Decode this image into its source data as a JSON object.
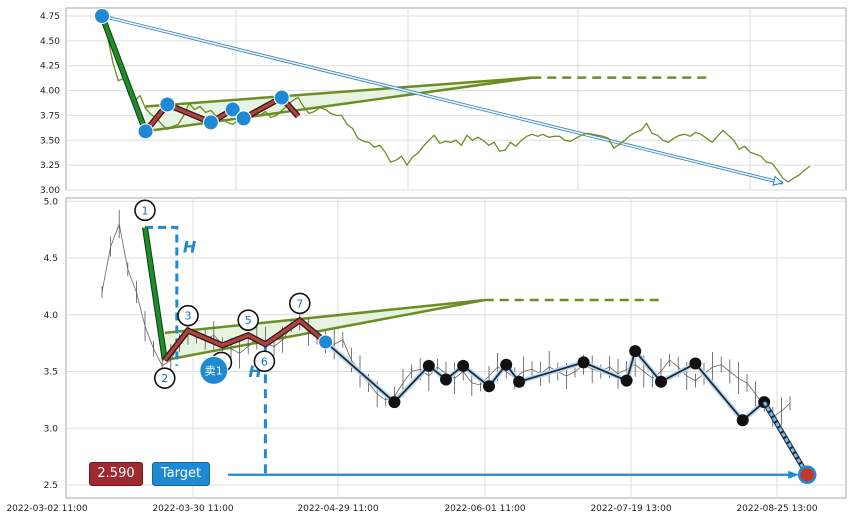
{
  "colors": {
    "price_line_top": "#6b8e23",
    "triangle": "#6b8e23",
    "impulse": "#1f8c2a",
    "zigzag_fill": "#a94442",
    "projection": "#1f8ad4",
    "markers_top": "#1f8ad4",
    "markers_bottom": "#111111",
    "target_marker": "#c0392b"
  },
  "badges": {
    "price": "2.590",
    "target": "Target"
  },
  "chart_data": [
    {
      "type": "line",
      "panel": "top",
      "y_ticks": [
        "4.75",
        "4.50",
        "4.25",
        "4.00",
        "3.75",
        "3.50",
        "3.25",
        "3.00"
      ],
      "ylim": [
        3.0,
        4.78
      ],
      "grid": true,
      "series": [
        {
          "values": [
            [
              0,
              4.75
            ],
            [
              1,
              4.55
            ],
            [
              2,
              4.28
            ],
            [
              3,
              4.1
            ],
            [
              4,
              4.12
            ],
            [
              5,
              3.95
            ],
            [
              6,
              3.9
            ],
            [
              7,
              3.95
            ],
            [
              8,
              3.82
            ],
            [
              9,
              3.76
            ],
            [
              10,
              3.72
            ],
            [
              11,
              3.66
            ],
            [
              12,
              3.61
            ],
            [
              13,
              3.64
            ],
            [
              14,
              3.66
            ],
            [
              15,
              3.75
            ],
            [
              16,
              3.87
            ],
            [
              17,
              3.81
            ],
            [
              18,
              3.84
            ],
            [
              19,
              3.78
            ],
            [
              20,
              3.8
            ],
            [
              21,
              3.74
            ],
            [
              22,
              3.72
            ],
            [
              23,
              3.68
            ],
            [
              24,
              3.66
            ],
            [
              25,
              3.7
            ],
            [
              26,
              3.74
            ],
            [
              27,
              3.72
            ],
            [
              28,
              3.77
            ],
            [
              29,
              3.75
            ],
            [
              30,
              3.79
            ],
            [
              31,
              3.73
            ],
            [
              32,
              3.75
            ],
            [
              33,
              3.8
            ],
            [
              34,
              3.85
            ],
            [
              35,
              3.9
            ],
            [
              36,
              3.93
            ],
            [
              37,
              3.84
            ],
            [
              38,
              3.77
            ],
            [
              39,
              3.79
            ],
            [
              40,
              3.83
            ],
            [
              41,
              3.81
            ],
            [
              42,
              3.77
            ],
            [
              43,
              3.75
            ],
            [
              44,
              3.75
            ],
            [
              45,
              3.66
            ],
            [
              46,
              3.62
            ],
            [
              47,
              3.52
            ],
            [
              48,
              3.49
            ],
            [
              49,
              3.48
            ],
            [
              50,
              3.43
            ],
            [
              51,
              3.45
            ],
            [
              52,
              3.38
            ],
            [
              53,
              3.28
            ],
            [
              54,
              3.3
            ],
            [
              55,
              3.34
            ],
            [
              56,
              3.25
            ],
            [
              57,
              3.33
            ],
            [
              58,
              3.37
            ],
            [
              59,
              3.44
            ],
            [
              60,
              3.5
            ],
            [
              61,
              3.55
            ],
            [
              62,
              3.47
            ],
            [
              63,
              3.49
            ],
            [
              64,
              3.48
            ],
            [
              65,
              3.5
            ],
            [
              66,
              3.45
            ],
            [
              67,
              3.55
            ],
            [
              68,
              3.5
            ],
            [
              69,
              3.53
            ],
            [
              70,
              3.5
            ],
            [
              71,
              3.45
            ],
            [
              72,
              3.48
            ],
            [
              73,
              3.39
            ],
            [
              74,
              3.4
            ],
            [
              75,
              3.48
            ],
            [
              76,
              3.44
            ],
            [
              77,
              3.5
            ],
            [
              78,
              3.54
            ],
            [
              79,
              3.56
            ],
            [
              80,
              3.54
            ],
            [
              81,
              3.56
            ],
            [
              82,
              3.53
            ],
            [
              83,
              3.54
            ],
            [
              84,
              3.54
            ],
            [
              85,
              3.5
            ],
            [
              86,
              3.49
            ],
            [
              87,
              3.52
            ],
            [
              88,
              3.55
            ],
            [
              89,
              3.57
            ],
            [
              90,
              3.56
            ],
            [
              91,
              3.55
            ],
            [
              92,
              3.54
            ],
            [
              93,
              3.52
            ],
            [
              94,
              3.42
            ],
            [
              95,
              3.46
            ],
            [
              96,
              3.5
            ],
            [
              97,
              3.55
            ],
            [
              98,
              3.58
            ],
            [
              99,
              3.6
            ],
            [
              100,
              3.67
            ],
            [
              101,
              3.57
            ],
            [
              102,
              3.55
            ],
            [
              103,
              3.5
            ],
            [
              104,
              3.48
            ],
            [
              105,
              3.52
            ],
            [
              106,
              3.55
            ],
            [
              107,
              3.56
            ],
            [
              108,
              3.54
            ],
            [
              109,
              3.58
            ],
            [
              110,
              3.56
            ],
            [
              111,
              3.52
            ],
            [
              112,
              3.48
            ],
            [
              113,
              3.54
            ],
            [
              114,
              3.6
            ],
            [
              115,
              3.55
            ],
            [
              116,
              3.5
            ],
            [
              117,
              3.41
            ],
            [
              118,
              3.44
            ],
            [
              119,
              3.38
            ],
            [
              120,
              3.36
            ],
            [
              121,
              3.34
            ],
            [
              122,
              3.28
            ],
            [
              123,
              3.27
            ],
            [
              124,
              3.2
            ],
            [
              125,
              3.12
            ],
            [
              126,
              3.08
            ],
            [
              127,
              3.12
            ],
            [
              128,
              3.15
            ],
            [
              129,
              3.2
            ],
            [
              130,
              3.24
            ]
          ]
        }
      ],
      "markers": [
        [
          0,
          4.75
        ],
        [
          8,
          3.59
        ],
        [
          12,
          3.86
        ],
        [
          20,
          3.68
        ],
        [
          24,
          3.81
        ],
        [
          26,
          3.72
        ],
        [
          33,
          3.93
        ]
      ],
      "impulse_line": [
        [
          0,
          4.75
        ],
        [
          8,
          3.59
        ]
      ],
      "zigzag": [
        [
          8,
          3.59
        ],
        [
          12,
          3.86
        ],
        [
          20,
          3.68
        ],
        [
          24,
          3.81
        ],
        [
          26,
          3.72
        ],
        [
          33,
          3.93
        ],
        [
          36,
          3.74
        ]
      ],
      "triangle": {
        "upper": [
          [
            8,
            3.84
          ],
          [
            79,
            4.13
          ]
        ],
        "lower": [
          [
            8,
            3.59
          ],
          [
            79,
            4.13
          ]
        ],
        "dashed_to": 111
      },
      "projection_arrow": [
        [
          0,
          4.75
        ],
        [
          125,
          3.07
        ]
      ]
    },
    {
      "type": "line",
      "panel": "bottom",
      "x_ticks": [
        "2022-03-02 11:00",
        "2022-03-30 11:00",
        "2022-04-29 11:00",
        "2022-06-01 11:00",
        "2022-07-19 13:00",
        "2022-08-25 13:00"
      ],
      "y_ticks": [
        "5.0",
        "4.5",
        "4.0",
        "3.5",
        "3.0",
        "2.5"
      ],
      "ylim": [
        2.45,
        5.02
      ],
      "grid": true,
      "series": [
        {
          "values": [
            [
              0,
              4.2
            ],
            [
              1,
              4.6
            ],
            [
              2,
              4.8
            ],
            [
              3,
              4.4
            ],
            [
              4,
              4.2
            ],
            [
              5,
              3.9
            ],
            [
              6,
              3.7
            ],
            [
              7,
              3.55
            ],
            [
              8,
              3.6
            ],
            [
              9,
              3.75
            ],
            [
              10,
              3.85
            ],
            [
              11,
              3.8
            ],
            [
              12,
              3.78
            ],
            [
              13,
              3.82
            ],
            [
              14,
              3.74
            ],
            [
              15,
              3.7
            ],
            [
              16,
              3.66
            ],
            [
              17,
              3.72
            ],
            [
              18,
              3.8
            ],
            [
              19,
              3.75
            ],
            [
              20,
              3.72
            ],
            [
              21,
              3.78
            ],
            [
              22,
              3.9
            ],
            [
              23,
              3.95
            ],
            [
              24,
              3.85
            ],
            [
              25,
              3.8
            ],
            [
              26,
              3.76
            ],
            [
              27,
              3.74
            ],
            [
              28,
              3.78
            ],
            [
              29,
              3.6
            ],
            [
              30,
              3.5
            ],
            [
              31,
              3.4
            ],
            [
              32,
              3.3
            ],
            [
              33,
              3.25
            ],
            [
              34,
              3.28
            ],
            [
              35,
              3.4
            ],
            [
              36,
              3.5
            ],
            [
              37,
              3.52
            ],
            [
              38,
              3.46
            ],
            [
              39,
              3.54
            ],
            [
              40,
              3.48
            ],
            [
              41,
              3.44
            ],
            [
              42,
              3.5
            ],
            [
              43,
              3.4
            ],
            [
              44,
              3.38
            ],
            [
              45,
              3.46
            ],
            [
              46,
              3.54
            ],
            [
              47,
              3.5
            ],
            [
              48,
              3.44
            ],
            [
              49,
              3.5
            ],
            [
              50,
              3.52
            ],
            [
              51,
              3.48
            ],
            [
              52,
              3.54
            ],
            [
              53,
              3.5
            ],
            [
              54,
              3.46
            ],
            [
              55,
              3.5
            ],
            [
              56,
              3.56
            ],
            [
              57,
              3.52
            ],
            [
              58,
              3.5
            ],
            [
              59,
              3.54
            ],
            [
              60,
              3.48
            ],
            [
              61,
              3.52
            ],
            [
              62,
              3.56
            ],
            [
              63,
              3.5
            ],
            [
              64,
              3.44
            ],
            [
              65,
              3.5
            ],
            [
              66,
              3.6
            ],
            [
              67,
              3.54
            ],
            [
              68,
              3.46
            ],
            [
              69,
              3.42
            ],
            [
              70,
              3.48
            ],
            [
              71,
              3.54
            ],
            [
              72,
              3.56
            ],
            [
              73,
              3.5
            ],
            [
              74,
              3.44
            ],
            [
              75,
              3.4
            ],
            [
              76,
              3.3
            ],
            [
              77,
              3.2
            ],
            [
              78,
              3.1
            ],
            [
              79,
              3.15
            ],
            [
              80,
              3.22
            ]
          ]
        }
      ],
      "impulse": {
        "points": [
          [
            5,
            4.77
          ],
          [
            7.3,
            3.6
          ]
        ],
        "labels": [
          "1",
          "2"
        ]
      },
      "wave_points": [
        [
          10,
          3.86
        ],
        [
          14,
          3.73
        ],
        [
          17,
          3.82
        ],
        [
          19,
          3.74
        ],
        [
          23,
          3.95
        ]
      ],
      "wave_labels": [
        "3",
        "4",
        "5",
        "6",
        "7"
      ],
      "sell_marker": {
        "point": [
          13,
          3.51
        ],
        "label": "卖1"
      },
      "h_label": "H",
      "triangle": {
        "upper": [
          [
            7.3,
            3.84
          ],
          [
            44.5,
            4.13
          ]
        ],
        "lower": [
          [
            7.3,
            3.6
          ],
          [
            44.5,
            4.13
          ]
        ],
        "dashed_to": 65
      },
      "breakout": [
        26,
        3.76
      ],
      "swings": [
        [
          26,
          3.76
        ],
        [
          34,
          3.23
        ],
        [
          38,
          3.55
        ],
        [
          40,
          3.43
        ],
        [
          42,
          3.55
        ],
        [
          45,
          3.37
        ],
        [
          47,
          3.56
        ],
        [
          48.5,
          3.41
        ],
        [
          56,
          3.58
        ],
        [
          61,
          3.42
        ],
        [
          62,
          3.68
        ],
        [
          65,
          3.41
        ],
        [
          69,
          3.57
        ],
        [
          74.5,
          3.07
        ],
        [
          77,
          3.23
        ]
      ],
      "target": [
        [
          77,
          3.23
        ],
        [
          82,
          2.59
        ]
      ],
      "target_line": [
        [
          17,
          2.59
        ],
        [
          82,
          2.59
        ]
      ],
      "h_measure_top": {
        "x": [
          5,
          8.7
        ],
        "y": [
          4.77,
          3.55
        ]
      },
      "h_measure_bottom": {
        "x": 19,
        "y": [
          3.74,
          2.59
        ]
      }
    }
  ]
}
